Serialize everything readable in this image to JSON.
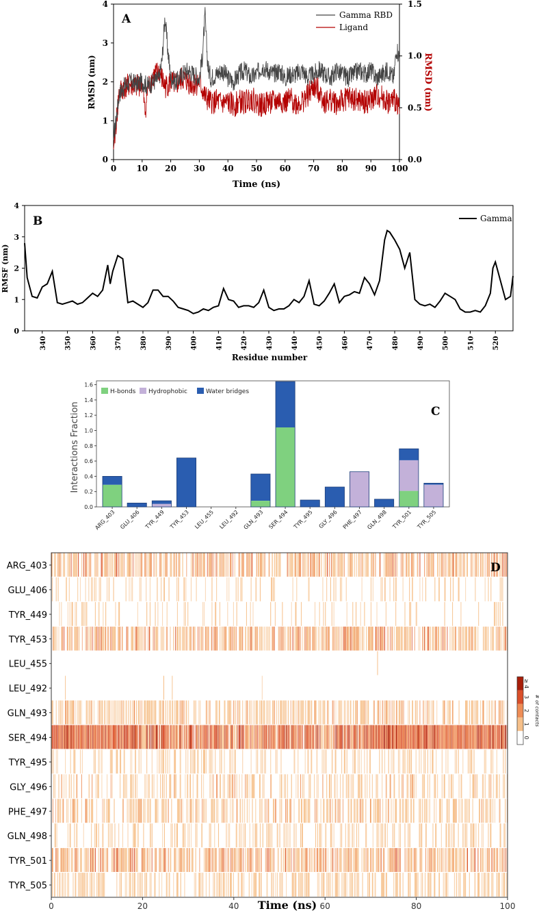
{
  "chart_data": [
    {
      "panel": "A",
      "type": "line",
      "xlabel": "Time (ns)",
      "ylabel": "RMSD (nm)",
      "ylabel_right": "RMSD (nm)",
      "xlim": [
        0,
        100
      ],
      "ylim": [
        0,
        4
      ],
      "ylim_right": [
        0,
        1.5
      ],
      "xticks": [
        0,
        10,
        20,
        30,
        40,
        50,
        60,
        70,
        80,
        90,
        100
      ],
      "yticks": [
        0,
        1,
        2,
        3,
        4
      ],
      "yticks_right": [
        0.0,
        0.5,
        1.0,
        1.5
      ],
      "ytick_labels_right": [
        "0.0",
        "0.5",
        "1.0",
        "1.5"
      ],
      "colors": {
        "gamma": "#444444",
        "ligand": "#b30000"
      },
      "series": [
        {
          "name": "Gamma RBD",
          "axis": "left",
          "x": [
            0,
            2,
            4,
            6,
            8,
            10,
            12,
            14,
            16,
            17,
            18,
            18.5,
            19,
            20,
            22,
            24,
            26,
            28,
            30,
            31,
            32,
            32.5,
            33,
            34,
            36,
            38,
            40,
            42,
            44,
            46,
            48,
            50,
            52,
            54,
            56,
            58,
            60,
            62,
            64,
            66,
            68,
            70,
            72,
            74,
            76,
            78,
            80,
            82,
            84,
            86,
            88,
            90,
            92,
            94,
            96,
            98,
            99,
            100
          ],
          "values": [
            0.5,
            1.7,
            1.9,
            2.0,
            1.95,
            2.0,
            1.9,
            2.0,
            2.1,
            2.6,
            3.7,
            3.2,
            2.8,
            2.1,
            2.0,
            2.2,
            2.3,
            2.2,
            2.1,
            2.6,
            3.7,
            3.0,
            2.4,
            2.1,
            2.2,
            2.3,
            2.1,
            2.0,
            2.2,
            2.3,
            2.1,
            2.2,
            2.4,
            2.3,
            2.2,
            2.3,
            2.1,
            2.2,
            2.2,
            2.3,
            2.1,
            2.2,
            2.3,
            2.2,
            2.1,
            2.3,
            2.2,
            2.1,
            2.2,
            2.3,
            2.2,
            2.3,
            2.1,
            2.2,
            2.3,
            2.1,
            2.9,
            2.6
          ]
        },
        {
          "name": "Ligand",
          "axis": "right",
          "x": [
            0,
            2,
            4,
            6,
            8,
            10,
            11,
            12,
            14,
            16,
            18,
            20,
            22,
            24,
            26,
            28,
            30,
            32,
            34,
            36,
            38,
            40,
            42,
            44,
            46,
            48,
            50,
            52,
            54,
            56,
            58,
            60,
            62,
            64,
            66,
            68,
            70,
            72,
            74,
            76,
            78,
            80,
            82,
            84,
            86,
            88,
            90,
            92,
            94,
            96,
            98,
            100
          ],
          "values": [
            0.1,
            0.65,
            0.7,
            0.72,
            0.7,
            0.75,
            0.45,
            0.7,
            0.8,
            0.85,
            0.7,
            0.75,
            0.72,
            0.78,
            0.75,
            0.72,
            0.75,
            0.6,
            0.55,
            0.56,
            0.54,
            0.55,
            0.52,
            0.56,
            0.55,
            0.6,
            0.55,
            0.52,
            0.56,
            0.55,
            0.57,
            0.55,
            0.58,
            0.54,
            0.56,
            0.62,
            0.7,
            0.66,
            0.55,
            0.58,
            0.54,
            0.56,
            0.6,
            0.58,
            0.56,
            0.55,
            0.57,
            0.62,
            0.6,
            0.55,
            0.57,
            0.55
          ]
        }
      ]
    },
    {
      "panel": "B",
      "type": "line",
      "xlabel": "Residue number",
      "ylabel": "RMSF (nm)",
      "xlim": [
        333,
        527
      ],
      "ylim": [
        0,
        4
      ],
      "xticks": [
        340,
        350,
        360,
        370,
        380,
        390,
        400,
        410,
        420,
        430,
        440,
        450,
        460,
        470,
        480,
        490,
        500,
        510,
        520
      ],
      "yticks": [
        0,
        1,
        2,
        3,
        4
      ],
      "colors": {
        "gamma": "#000000"
      },
      "series": [
        {
          "name": "Gamma",
          "x": [
            333,
            334,
            336,
            338,
            340,
            342,
            344,
            346,
            348,
            350,
            352,
            354,
            356,
            358,
            360,
            362,
            364,
            366,
            367,
            368,
            370,
            372,
            374,
            376,
            378,
            380,
            382,
            384,
            386,
            388,
            390,
            392,
            394,
            396,
            398,
            400,
            402,
            404,
            406,
            408,
            410,
            412,
            414,
            416,
            418,
            420,
            422,
            424,
            426,
            428,
            430,
            432,
            434,
            436,
            438,
            440,
            442,
            444,
            446,
            448,
            450,
            452,
            454,
            456,
            458,
            460,
            462,
            464,
            466,
            468,
            470,
            472,
            474,
            476,
            477,
            478,
            480,
            482,
            484,
            486,
            488,
            490,
            492,
            494,
            496,
            498,
            500,
            502,
            504,
            506,
            508,
            510,
            512,
            514,
            516,
            518,
            519,
            520,
            522,
            524,
            526,
            527
          ],
          "values": [
            2.8,
            1.7,
            1.1,
            1.05,
            1.4,
            1.5,
            1.9,
            0.9,
            0.85,
            0.9,
            0.95,
            0.85,
            0.9,
            1.05,
            1.2,
            1.1,
            1.3,
            2.1,
            1.5,
            1.9,
            2.4,
            2.3,
            0.9,
            0.95,
            0.85,
            0.75,
            0.9,
            1.3,
            1.3,
            1.1,
            1.1,
            0.95,
            0.75,
            0.7,
            0.65,
            0.55,
            0.6,
            0.7,
            0.65,
            0.75,
            0.8,
            1.35,
            1.0,
            0.95,
            0.75,
            0.8,
            0.8,
            0.75,
            0.9,
            1.3,
            0.75,
            0.65,
            0.7,
            0.7,
            0.8,
            1.0,
            0.9,
            1.1,
            1.6,
            0.85,
            0.8,
            0.95,
            1.2,
            1.5,
            0.9,
            1.1,
            1.15,
            1.25,
            1.2,
            1.7,
            1.5,
            1.15,
            1.6,
            2.9,
            3.2,
            3.15,
            2.9,
            2.6,
            2.0,
            2.5,
            1.0,
            0.85,
            0.8,
            0.85,
            0.75,
            0.95,
            1.2,
            1.1,
            1.0,
            0.7,
            0.6,
            0.6,
            0.65,
            0.6,
            0.8,
            1.2,
            2.0,
            2.2,
            1.6,
            1.0,
            1.1,
            1.75
          ]
        }
      ]
    },
    {
      "panel": "C",
      "type": "bar",
      "stacked": true,
      "ylabel": "Interactions Fraction",
      "ylim": [
        0,
        1.65
      ],
      "yticks": [
        0.0,
        0.2,
        0.4,
        0.6,
        0.8,
        1.0,
        1.2,
        1.4,
        1.6
      ],
      "ytick_labels": [
        "0.0",
        "0.2",
        "0.4",
        "0.6",
        "0.8",
        "1.0",
        "1.2",
        "1.4",
        "1.6"
      ],
      "categories": [
        "ARG_403",
        "GLU_406",
        "TYR_449",
        "TYR_453",
        "LEU_455",
        "LEU_492",
        "GLN_493",
        "SER_494",
        "TYR_495",
        "GLY_496",
        "PHE_497",
        "GLN_498",
        "TYR_501",
        "TYR_505"
      ],
      "series": [
        {
          "name": "H-bonds",
          "color": "#7fd17f",
          "values": [
            0.29,
            0,
            0,
            0,
            0,
            0,
            0.08,
            1.04,
            0,
            0,
            0,
            0,
            0.21,
            0
          ]
        },
        {
          "name": "Hydrophobic",
          "color": "#c3b1d9",
          "values": [
            0,
            0,
            0.04,
            0,
            0,
            0,
            0,
            0,
            0,
            0,
            0.46,
            0,
            0.4,
            0.29
          ]
        },
        {
          "name": "Water bridges",
          "color": "#2a5db0",
          "values": [
            0.11,
            0.05,
            0.04,
            0.64,
            0,
            0,
            0.35,
            0.6,
            0.09,
            0.26,
            0,
            0.1,
            0.15,
            0.02
          ]
        }
      ]
    },
    {
      "panel": "D",
      "type": "heatmap",
      "xlabel": "Time (ns)",
      "xlim": [
        0,
        100
      ],
      "xticks": [
        0,
        20,
        40,
        60,
        80,
        100
      ],
      "residues": [
        "ARG_403",
        "GLU_406",
        "TYR_449",
        "TYR_453",
        "LEU_455",
        "LEU_492",
        "GLN_493",
        "SER_494",
        "TYR_495",
        "GLY_496",
        "PHE_497",
        "GLN_498",
        "TYR_501",
        "TYR_505"
      ],
      "contact_density": [
        0.55,
        0.18,
        0.12,
        0.6,
        0.003,
        0.01,
        0.5,
        0.95,
        0.22,
        0.3,
        0.4,
        0.25,
        0.6,
        0.35
      ],
      "contact_intensity": [
        1.3,
        1.0,
        1.0,
        1.6,
        1.0,
        1.0,
        1.2,
        2.5,
        1.0,
        1.1,
        1.1,
        1.0,
        1.3,
        1.0
      ],
      "colorbar": {
        "label": "# of contacts",
        "ticks": [
          "0",
          "1",
          "2",
          "3",
          "≥ 4"
        ]
      }
    }
  ]
}
